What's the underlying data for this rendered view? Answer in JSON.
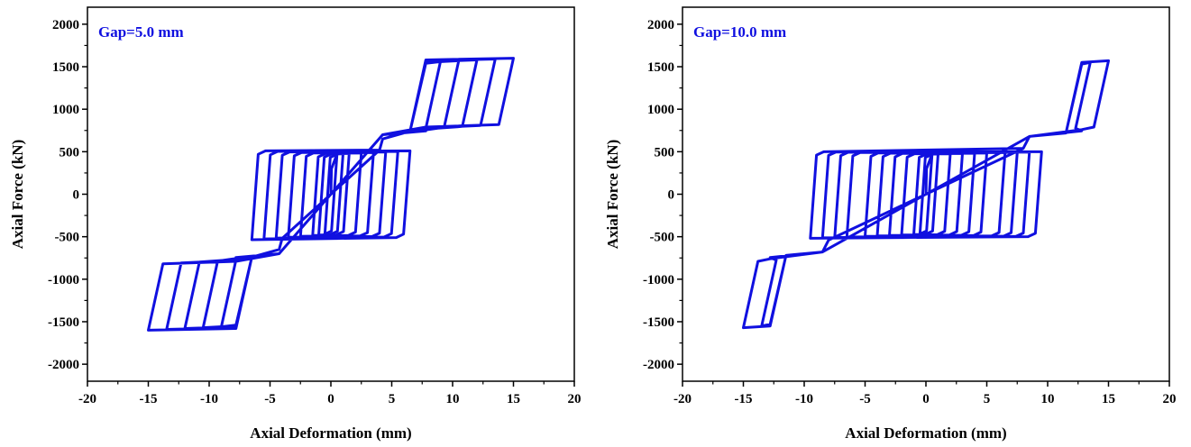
{
  "chart_data": [
    {
      "type": "line",
      "annotation": "Gap=5.0 mm",
      "xlabel": "Axial Deformation (mm)",
      "ylabel": "Axial Force (kN)",
      "xlim": [
        -20,
        20
      ],
      "ylim": [
        -2200,
        2200
      ],
      "xticks": [
        -20,
        -15,
        -10,
        -5,
        0,
        5,
        10,
        15,
        20
      ],
      "yticks": [
        -2000,
        -1500,
        -1000,
        -500,
        0,
        500,
        1000,
        1500,
        2000
      ],
      "grid": false,
      "series_color": "#1010e0",
      "hysteresis": {
        "gap": 5.0,
        "elastic_tip_amplitudes": [
          0.5,
          1.0,
          1.5,
          2.5,
          3.5,
          4.5,
          5.5,
          6.5
        ],
        "gap_step_force": [
          520,
          650
        ],
        "contact_force": 740,
        "pinched_amplitudes": [
          9.0,
          10.5,
          12.0,
          13.5,
          15.0
        ],
        "peak_force": [
          1540,
          1580
        ],
        "unload_force": [
          775,
          820
        ]
      }
    },
    {
      "type": "line",
      "annotation": "Gap=10.0 mm",
      "xlabel": "Axial Deformation (mm)",
      "ylabel": "Axial Force (kN)",
      "xlim": [
        -20,
        20
      ],
      "ylim": [
        -2200,
        2200
      ],
      "xticks": [
        -20,
        -15,
        -10,
        -5,
        0,
        5,
        10,
        15,
        20
      ],
      "yticks": [
        -2000,
        -1500,
        -1000,
        -500,
        0,
        500,
        1000,
        1500,
        2000
      ],
      "grid": false,
      "series_color": "#1010e0",
      "hysteresis": {
        "gap": 10.0,
        "elastic_tip_amplitudes": [
          0.5,
          1.0,
          2.0,
          3.0,
          4.0,
          5.0,
          6.5,
          7.5,
          8.5,
          9.5
        ],
        "gap_step_force": [
          540,
          680
        ],
        "contact_force": 720,
        "pinched_amplitudes": [
          13.5,
          15.0
        ],
        "peak_force": [
          1530,
          1550
        ],
        "unload_force": [
          775,
          790
        ]
      }
    }
  ]
}
